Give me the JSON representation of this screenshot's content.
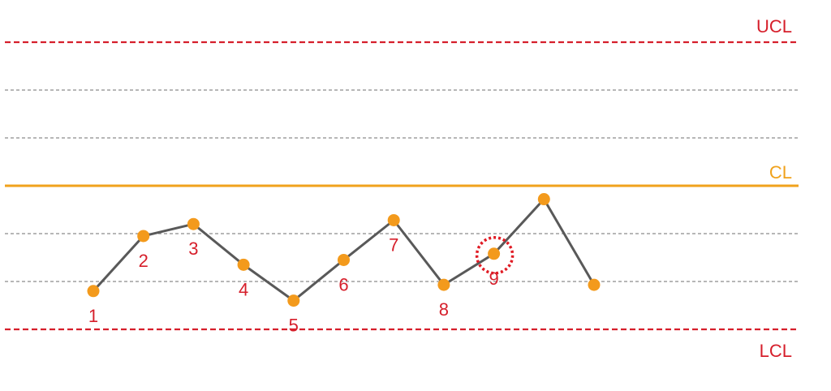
{
  "colors": {
    "limit": "#d61f2b",
    "center": "#f0a21c",
    "grid": "#8c8c8c",
    "line": "#595959",
    "point": "#f39a1c",
    "point_label": "#d61f2b",
    "highlight": "#e01b24"
  },
  "chart_data": {
    "type": "line",
    "title": "",
    "xlabel": "",
    "ylabel": "",
    "ylim": [
      -3.4,
      3.4
    ],
    "xlim": [
      0.5,
      11.0
    ],
    "grid": false,
    "control_lines": [
      {
        "name": "UCL",
        "label": "UCL",
        "value": 3,
        "style": "dashed-limit"
      },
      {
        "name": "zone-upper-2",
        "label": "",
        "value": 2,
        "style": "dashed-grid"
      },
      {
        "name": "zone-upper-1",
        "label": "",
        "value": 1,
        "style": "dashed-grid"
      },
      {
        "name": "CL",
        "label": "CL",
        "value": 0,
        "style": "solid-center"
      },
      {
        "name": "zone-lower-1",
        "label": "",
        "value": -1,
        "style": "dashed-grid"
      },
      {
        "name": "zone-lower-2",
        "label": "",
        "value": -2,
        "style": "dashed-grid"
      },
      {
        "name": "LCL",
        "label": "LCL",
        "value": -3,
        "style": "dashed-limit"
      }
    ],
    "series": [
      {
        "x": [
          1,
          2,
          3,
          4,
          5,
          6,
          7,
          8,
          9,
          10,
          11
        ],
        "values": [
          -2.2,
          -1.05,
          -0.8,
          -1.65,
          -2.4,
          -1.55,
          -0.72,
          -2.07,
          -1.42,
          -0.28,
          -2.07
        ]
      }
    ],
    "point_labels": [
      "1",
      "2",
      "3",
      "4",
      "5",
      "6",
      "7",
      "8",
      "9",
      "",
      ""
    ],
    "highlighted_points": [
      9
    ]
  }
}
